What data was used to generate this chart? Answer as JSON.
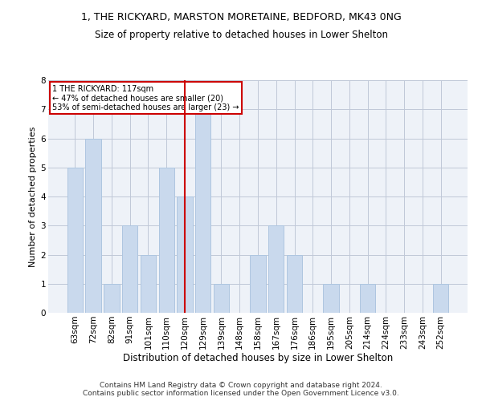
{
  "title": "1, THE RICKYARD, MARSTON MORETAINE, BEDFORD, MK43 0NG",
  "subtitle": "Size of property relative to detached houses in Lower Shelton",
  "xlabel": "Distribution of detached houses by size in Lower Shelton",
  "ylabel": "Number of detached properties",
  "categories": [
    "63sqm",
    "72sqm",
    "82sqm",
    "91sqm",
    "101sqm",
    "110sqm",
    "120sqm",
    "129sqm",
    "139sqm",
    "148sqm",
    "158sqm",
    "167sqm",
    "176sqm",
    "186sqm",
    "195sqm",
    "205sqm",
    "214sqm",
    "224sqm",
    "233sqm",
    "243sqm",
    "252sqm"
  ],
  "values": [
    5,
    6,
    1,
    3,
    2,
    5,
    4,
    7,
    1,
    0,
    2,
    3,
    2,
    0,
    1,
    0,
    1,
    0,
    0,
    0,
    1
  ],
  "bar_color": "#c9d9ed",
  "bar_edge_color": "#aec6e0",
  "grid_color": "#c0c8d8",
  "background_color": "#eef2f8",
  "ref_line_color": "#cc0000",
  "annotation_text": "1 THE RICKYARD: 117sqm\n← 47% of detached houses are smaller (20)\n53% of semi-detached houses are larger (23) →",
  "annotation_box_color": "#cc0000",
  "ylim": [
    0,
    8
  ],
  "yticks": [
    0,
    1,
    2,
    3,
    4,
    5,
    6,
    7,
    8
  ],
  "footer": "Contains HM Land Registry data © Crown copyright and database right 2024.\nContains public sector information licensed under the Open Government Licence v3.0.",
  "title_fontsize": 9,
  "subtitle_fontsize": 8.5,
  "xlabel_fontsize": 8.5,
  "ylabel_fontsize": 8,
  "tick_fontsize": 7.5,
  "footer_fontsize": 6.5,
  "ref_line_bar_index": 6.0
}
